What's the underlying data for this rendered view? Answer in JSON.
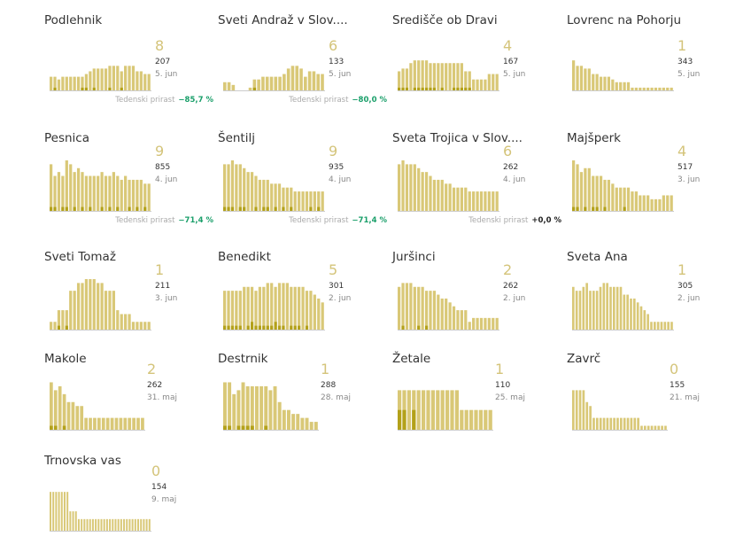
{
  "colors": {
    "bar": "#d9c877",
    "new_bar": "#b3a11a",
    "number": "#d4c47a",
    "positive": "#1a9f6a",
    "neutral": "#222222"
  },
  "growth_label": "Tedenski prirast",
  "chart_data": [
    {
      "type": "bar",
      "name": "Podlehnik",
      "value": "8",
      "total": "207",
      "date": "5. jun",
      "growth": "−85,7 %",
      "growth_kind": "negative",
      "values": [
        5,
        5,
        4,
        5,
        5,
        5,
        5,
        5,
        5,
        6,
        7,
        8,
        8,
        8,
        8,
        9,
        9,
        9,
        7,
        9,
        9,
        9,
        7,
        7,
        6,
        6
      ],
      "new": [
        0,
        1,
        0,
        0,
        0,
        0,
        0,
        0,
        1,
        1,
        0,
        1,
        0,
        0,
        0,
        1,
        0,
        0,
        1,
        0,
        0,
        0,
        0,
        0,
        0,
        0
      ]
    },
    {
      "type": "bar",
      "name": "Sveti Andraž v Slov....",
      "value": "6",
      "total": "133",
      "date": "5. jun",
      "growth": "−80,0 %",
      "growth_kind": "negative",
      "values": [
        3,
        3,
        2,
        0,
        0,
        0,
        1,
        4,
        4,
        5,
        5,
        5,
        5,
        5,
        6,
        8,
        9,
        9,
        8,
        5,
        7,
        7,
        6,
        6
      ],
      "new": [
        0,
        0,
        0,
        0,
        0,
        0,
        0,
        1,
        0,
        0,
        0,
        0,
        0,
        0,
        0,
        0,
        0,
        0,
        0,
        0,
        0,
        0,
        0,
        0
      ]
    },
    {
      "type": "bar",
      "name": "Središče ob Dravi",
      "value": "4",
      "total": "167",
      "date": "5. jun",
      "growth": "",
      "values": [
        7,
        8,
        8,
        10,
        11,
        11,
        11,
        11,
        10,
        10,
        10,
        10,
        10,
        10,
        10,
        10,
        10,
        7,
        7,
        4,
        4,
        4,
        4,
        6,
        6,
        6
      ],
      "new": [
        1,
        1,
        1,
        0,
        1,
        1,
        1,
        1,
        1,
        1,
        0,
        1,
        0,
        0,
        1,
        1,
        1,
        1,
        1,
        0,
        0,
        0,
        0,
        0,
        0,
        0
      ]
    },
    {
      "type": "bar",
      "name": "Lovrenc na Pohorju",
      "value": "1",
      "total": "343",
      "date": "5. jun",
      "growth": "",
      "values": [
        11,
        9,
        9,
        8,
        8,
        6,
        6,
        5,
        5,
        5,
        4,
        3,
        3,
        3,
        3,
        1,
        1,
        1,
        1,
        1,
        1,
        1,
        1,
        1,
        1,
        1
      ],
      "new": [
        0,
        0,
        0,
        0,
        0,
        0,
        0,
        0,
        0,
        0,
        0,
        0,
        0,
        0,
        0,
        0,
        0,
        0,
        0,
        0,
        0,
        0,
        0,
        0,
        0,
        0
      ]
    },
    {
      "type": "bar",
      "name": "Pesnica",
      "value": "9",
      "total": "855",
      "date": "4. jun",
      "growth": "−71,4 %",
      "growth_kind": "negative",
      "values": [
        12,
        9,
        10,
        9,
        13,
        12,
        10,
        11,
        10,
        9,
        9,
        9,
        9,
        10,
        9,
        9,
        10,
        9,
        8,
        9,
        8,
        8,
        8,
        8,
        7,
        7
      ],
      "new": [
        1,
        1,
        0,
        1,
        1,
        0,
        1,
        0,
        1,
        0,
        1,
        0,
        0,
        1,
        0,
        1,
        0,
        1,
        0,
        0,
        1,
        0,
        1,
        0,
        1,
        0
      ]
    },
    {
      "type": "bar",
      "name": "Šentilj",
      "value": "9",
      "total": "935",
      "date": "4. jun",
      "growth": "−71,4 %",
      "growth_kind": "negative",
      "values": [
        12,
        12,
        13,
        12,
        12,
        11,
        10,
        10,
        9,
        8,
        8,
        8,
        7,
        7,
        7,
        6,
        6,
        6,
        5,
        5,
        5,
        5,
        5,
        5,
        5,
        5
      ],
      "new": [
        1,
        1,
        1,
        0,
        1,
        1,
        0,
        0,
        1,
        0,
        1,
        1,
        0,
        1,
        0,
        1,
        0,
        1,
        0,
        0,
        0,
        0,
        1,
        0,
        1,
        0
      ]
    },
    {
      "type": "bar",
      "name": "Sveta Trojica v Slov....",
      "value": "6",
      "total": "262",
      "date": "4. jun",
      "growth": "+0,0 %",
      "growth_kind": "neutral",
      "values": [
        12,
        13,
        12,
        12,
        12,
        11,
        10,
        10,
        9,
        8,
        8,
        8,
        7,
        7,
        6,
        6,
        6,
        6,
        5,
        5,
        5,
        5,
        5,
        5,
        5,
        5
      ],
      "new": [
        0,
        0,
        0,
        0,
        0,
        0,
        0,
        0,
        0,
        0,
        0,
        0,
        0,
        0,
        0,
        0,
        0,
        0,
        0,
        0,
        0,
        0,
        0,
        0,
        0,
        0
      ]
    },
    {
      "type": "bar",
      "name": "Majšperk",
      "value": "4",
      "total": "517",
      "date": "3. jun",
      "growth": "",
      "values": [
        13,
        12,
        10,
        11,
        11,
        9,
        9,
        9,
        8,
        8,
        7,
        6,
        6,
        6,
        6,
        5,
        5,
        4,
        4,
        4,
        3,
        3,
        3,
        4,
        4,
        4
      ],
      "new": [
        1,
        1,
        0,
        1,
        0,
        1,
        1,
        0,
        1,
        0,
        0,
        0,
        0,
        1,
        0,
        0,
        0,
        0,
        0,
        0,
        0,
        0,
        0,
        0,
        0,
        0
      ]
    },
    {
      "type": "bar",
      "name": "Sveti Tomaž",
      "value": "1",
      "total": "211",
      "date": "3. jun",
      "growth": "",
      "values": [
        2,
        2,
        5,
        5,
        5,
        10,
        10,
        12,
        12,
        13,
        13,
        13,
        12,
        12,
        10,
        10,
        10,
        5,
        4,
        4,
        4,
        2,
        2,
        2,
        2,
        2
      ],
      "new": [
        0,
        0,
        1,
        0,
        1,
        0,
        0,
        0,
        0,
        0,
        0,
        0,
        0,
        0,
        0,
        0,
        0,
        0,
        0,
        0,
        0,
        0,
        0,
        0,
        0,
        0
      ]
    },
    {
      "type": "bar",
      "name": "Benedikt",
      "value": "5",
      "total": "301",
      "date": "2. jun",
      "growth": "",
      "values": [
        10,
        10,
        10,
        10,
        10,
        11,
        11,
        11,
        10,
        11,
        11,
        12,
        12,
        11,
        12,
        12,
        12,
        11,
        11,
        11,
        11,
        10,
        10,
        9,
        8,
        7
      ],
      "new": [
        1,
        1,
        1,
        1,
        1,
        0,
        1,
        2,
        1,
        1,
        1,
        1,
        1,
        2,
        1,
        1,
        0,
        1,
        1,
        1,
        0,
        1,
        0,
        0,
        0,
        0
      ]
    },
    {
      "type": "bar",
      "name": "Juršinci",
      "value": "2",
      "total": "262",
      "date": "2. jun",
      "growth": "",
      "values": [
        11,
        12,
        12,
        12,
        11,
        11,
        11,
        10,
        10,
        10,
        9,
        8,
        8,
        7,
        6,
        5,
        5,
        5,
        2,
        3,
        3,
        3,
        3,
        3,
        3,
        3
      ],
      "new": [
        0,
        1,
        0,
        0,
        0,
        1,
        0,
        1,
        0,
        0,
        0,
        0,
        0,
        0,
        0,
        0,
        0,
        0,
        0,
        0,
        0,
        0,
        0,
        0,
        0,
        0
      ]
    },
    {
      "type": "bar",
      "name": "Sveta Ana",
      "value": "1",
      "total": "305",
      "date": "2. jun",
      "growth": "",
      "values": [
        11,
        10,
        10,
        11,
        12,
        10,
        10,
        10,
        11,
        12,
        12,
        11,
        11,
        11,
        11,
        9,
        9,
        8,
        8,
        7,
        6,
        5,
        4,
        2,
        2,
        2,
        2,
        2,
        2,
        2
      ],
      "new": [
        0,
        0,
        0,
        0,
        0,
        0,
        0,
        0,
        0,
        0,
        0,
        0,
        0,
        0,
        0,
        0,
        0,
        0,
        0,
        0,
        0,
        0,
        0,
        0,
        0,
        0,
        0,
        0,
        0,
        0
      ]
    },
    {
      "type": "bar",
      "name": "Makole",
      "value": "2",
      "total": "262",
      "date": "31. maj",
      "growth": "",
      "values": [
        12,
        10,
        11,
        9,
        7,
        7,
        6,
        6,
        3,
        3,
        3,
        3,
        3,
        3,
        3,
        3,
        3,
        3,
        3,
        3,
        3,
        3
      ],
      "new": [
        1,
        1,
        0,
        1,
        0,
        0,
        0,
        0,
        0,
        0,
        0,
        0,
        0,
        0,
        0,
        0,
        0,
        0,
        0,
        0,
        0,
        0
      ]
    },
    {
      "type": "bar",
      "name": "Destrnik",
      "value": "1",
      "total": "288",
      "date": "28. maj",
      "growth": "",
      "values": [
        12,
        12,
        9,
        10,
        12,
        11,
        11,
        11,
        11,
        11,
        10,
        11,
        7,
        5,
        5,
        4,
        4,
        3,
        3,
        2,
        2
      ],
      "new": [
        1,
        1,
        0,
        1,
        1,
        1,
        1,
        0,
        0,
        1,
        0,
        0,
        0,
        0,
        0,
        0,
        0,
        0,
        0,
        0,
        0
      ]
    },
    {
      "type": "bar",
      "name": "Žetale",
      "value": "1",
      "total": "110",
      "date": "25. maj",
      "growth": "",
      "values": [
        10,
        10,
        10,
        10,
        10,
        10,
        10,
        10,
        10,
        10,
        10,
        10,
        10,
        5,
        5,
        5,
        5,
        5,
        5,
        5
      ],
      "new": [
        5,
        5,
        0,
        5,
        0,
        0,
        0,
        0,
        0,
        0,
        0,
        0,
        0,
        0,
        0,
        0,
        0,
        0,
        0,
        0
      ]
    },
    {
      "type": "bar",
      "name": "Zavrč",
      "value": "0",
      "total": "155",
      "date": "21. maj",
      "growth": "",
      "values": [
        10,
        10,
        10,
        10,
        7,
        6,
        3,
        3,
        3,
        3,
        3,
        3,
        3,
        3,
        3,
        3,
        3,
        3,
        3,
        3,
        1,
        1,
        1,
        1,
        1,
        1,
        1,
        1
      ],
      "new": [
        0,
        0,
        0,
        0,
        0,
        0,
        0,
        0,
        0,
        0,
        0,
        0,
        0,
        0,
        0,
        0,
        0,
        0,
        0,
        0,
        0,
        0,
        0,
        0,
        0,
        0,
        0,
        0
      ]
    },
    {
      "type": "bar",
      "name": "Trnovska vas",
      "value": "0",
      "total": "154",
      "date": "9. maj",
      "growth": "",
      "values": [
        10,
        10,
        10,
        10,
        10,
        10,
        10,
        5,
        5,
        5,
        3,
        3,
        3,
        3,
        3,
        3,
        3,
        3,
        3,
        3,
        3,
        3,
        3,
        3,
        3,
        3,
        3,
        3,
        3,
        3,
        3,
        3,
        3,
        3,
        3,
        3
      ],
      "new": [
        0,
        0,
        0,
        0,
        0,
        0,
        0,
        0,
        0,
        0,
        0,
        0,
        0,
        0,
        0,
        0,
        0,
        0,
        0,
        0,
        0,
        0,
        0,
        0,
        0,
        0,
        0,
        0,
        0,
        0,
        0,
        0,
        0,
        0,
        0,
        0
      ]
    }
  ]
}
